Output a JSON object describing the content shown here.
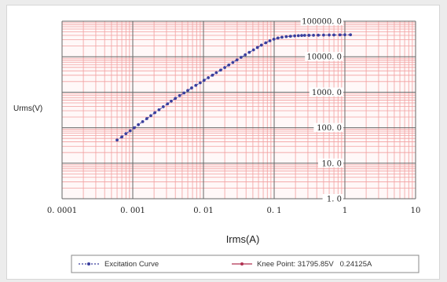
{
  "chart_data": {
    "type": "line",
    "x_scale": "log",
    "y_scale": "log",
    "xlim": [
      0.0001,
      10
    ],
    "ylim": [
      1,
      100000
    ],
    "xlabel": "Irms(A)",
    "ylabel": "Urms(V)",
    "x_tick_values": [
      0.0001,
      0.001,
      0.01,
      0.1,
      1,
      10
    ],
    "x_tick_labels": [
      "0. 0001",
      "0. 001",
      "0. 01",
      "0. 1",
      "1",
      "10"
    ],
    "y_tick_values": [
      1,
      10,
      100,
      1000,
      10000,
      100000
    ],
    "y_tick_labels": [
      "1. 0",
      "10. 0",
      "100. 0",
      "1000. 0",
      "10000. 0",
      "100000. 0"
    ],
    "grid": true,
    "grid_color": "#f2a0a0",
    "major_grid_color": "#666666",
    "legend_position": "bottom",
    "series": [
      {
        "name": "Excitation Curve",
        "color": "#3a3f9e",
        "marker": "dot",
        "x": [
          0.0006,
          0.0007,
          0.0008,
          0.00092,
          0.00105,
          0.0012,
          0.00138,
          0.00158,
          0.0018,
          0.00205,
          0.00235,
          0.0027,
          0.0031,
          0.0035,
          0.004,
          0.0046,
          0.0053,
          0.006,
          0.0068,
          0.0078,
          0.009,
          0.0102,
          0.0117,
          0.0134,
          0.0152,
          0.0175,
          0.02,
          0.0228,
          0.026,
          0.0298,
          0.034,
          0.039,
          0.0445,
          0.051,
          0.058,
          0.066,
          0.076,
          0.087,
          0.099,
          0.113,
          0.129,
          0.148,
          0.17,
          0.195,
          0.22,
          0.245,
          0.27,
          0.31,
          0.36,
          0.42,
          0.5,
          0.6,
          0.7,
          0.85,
          1.0,
          1.2
        ],
        "y": [
          45,
          55,
          68,
          82,
          100,
          122,
          148,
          180,
          218,
          265,
          320,
          390,
          470,
          560,
          670,
          800,
          950,
          1120,
          1320,
          1560,
          1840,
          2170,
          2560,
          3020,
          3560,
          4200,
          4950,
          5850,
          6900,
          8150,
          9600,
          11300,
          13300,
          15600,
          18200,
          21200,
          24600,
          28200,
          31200,
          33600,
          35400,
          36800,
          37800,
          38600,
          39200,
          39600,
          39900,
          40100,
          40300,
          40500,
          40700,
          40900,
          41000,
          41200,
          41400,
          41600
        ]
      },
      {
        "name": "Knee Point: 31795.85V   0.24125A",
        "color": "#b03050",
        "marker": "dot",
        "x": [],
        "y": []
      }
    ]
  }
}
